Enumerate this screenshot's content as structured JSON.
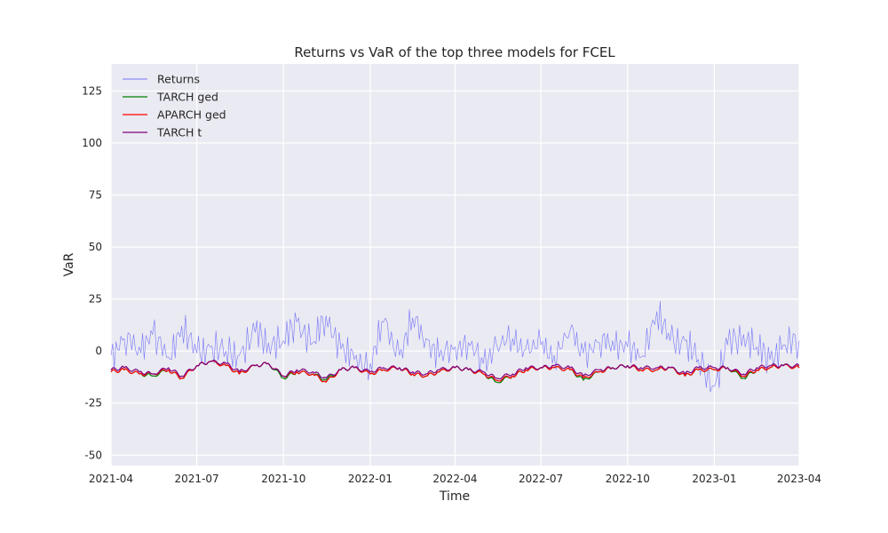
{
  "chart_data": {
    "type": "line",
    "title": "Returns vs VaR of the top three models for FCEL",
    "xlabel": "Time",
    "ylabel": "VaR",
    "xlim": [
      "2021-04-01",
      "2023-04-01"
    ],
    "ylim": [
      -55,
      138
    ],
    "x_ticks": [
      "2021-04",
      "2021-07",
      "2021-10",
      "2022-01",
      "2022-04",
      "2022-07",
      "2022-10",
      "2023-01",
      "2023-04"
    ],
    "y_ticks": [
      -50,
      -25,
      0,
      25,
      50,
      75,
      100,
      125
    ],
    "grid": true,
    "legend_position": "top-left",
    "x": [
      "2021-04-01",
      "2021-04-15",
      "2021-05-01",
      "2021-05-15",
      "2021-06-01",
      "2021-06-15",
      "2021-07-01",
      "2021-07-15",
      "2021-08-01",
      "2021-08-15",
      "2021-09-01",
      "2021-09-15",
      "2021-10-01",
      "2021-10-15",
      "2021-11-01",
      "2021-11-15",
      "2021-12-01",
      "2021-12-15",
      "2022-01-01",
      "2022-01-15",
      "2022-02-01",
      "2022-02-15",
      "2022-03-01",
      "2022-03-15",
      "2022-04-01",
      "2022-04-15",
      "2022-05-01",
      "2022-05-15",
      "2022-06-01",
      "2022-06-15",
      "2022-07-01",
      "2022-07-15",
      "2022-08-01",
      "2022-08-15",
      "2022-09-01",
      "2022-09-15",
      "2022-10-01",
      "2022-10-15",
      "2022-11-01",
      "2022-11-15",
      "2022-12-01",
      "2022-12-15",
      "2023-01-01",
      "2023-01-15",
      "2023-02-01",
      "2023-02-15",
      "2023-03-01",
      "2023-03-15",
      "2023-04-01"
    ],
    "series": [
      {
        "name": "Returns",
        "color": "#0000ff",
        "opacity": 0.5,
        "width": 0.6,
        "values": [
          -2,
          6,
          2,
          8,
          -3,
          12,
          -1,
          2,
          0,
          -2,
          9,
          4,
          5,
          14,
          4,
          17,
          1,
          -4,
          -6,
          14,
          -2,
          16,
          6,
          -3,
          2,
          4,
          -6,
          3,
          6,
          1,
          3,
          -2,
          10,
          -1,
          4,
          5,
          2,
          -3,
          19,
          5,
          5,
          -4,
          -17,
          3,
          8,
          2,
          -4,
          3,
          5
        ]
      },
      {
        "name": "TARCH ged",
        "color": "#008000",
        "width": 1.2,
        "values": [
          -10,
          -9,
          -11,
          -12,
          -9,
          -13,
          -7,
          -5,
          -7,
          -11,
          -7,
          -6,
          -13,
          -10,
          -11,
          -14,
          -9,
          -8,
          -11,
          -9,
          -8,
          -11,
          -12,
          -10,
          -8,
          -9,
          -11,
          -15,
          -12,
          -9,
          -8,
          -8,
          -9,
          -14,
          -10,
          -8,
          -7,
          -9,
          -9,
          -8,
          -12,
          -9,
          -9,
          -8,
          -13,
          -9,
          -8,
          -7,
          -8
        ]
      },
      {
        "name": "APARCH ged",
        "color": "#ff0000",
        "width": 1.2,
        "values": [
          -10,
          -9,
          -11,
          -11,
          -9,
          -13,
          -7,
          -5,
          -7,
          -11,
          -7,
          -6,
          -12,
          -10,
          -11,
          -15,
          -9,
          -8,
          -11,
          -9,
          -8,
          -11,
          -12,
          -10,
          -8,
          -9,
          -11,
          -14,
          -12,
          -9,
          -8,
          -8,
          -9,
          -13,
          -10,
          -8,
          -7,
          -9,
          -9,
          -8,
          -12,
          -9,
          -9,
          -8,
          -12,
          -9,
          -8,
          -7,
          -8
        ]
      },
      {
        "name": "TARCH t",
        "color": "#800080",
        "width": 1.2,
        "values": [
          -9,
          -8,
          -10,
          -11,
          -8,
          -12,
          -7,
          -5,
          -6,
          -10,
          -7,
          -6,
          -12,
          -9,
          -10,
          -13,
          -9,
          -8,
          -10,
          -8,
          -8,
          -10,
          -11,
          -9,
          -8,
          -9,
          -10,
          -13,
          -11,
          -8,
          -8,
          -7,
          -8,
          -12,
          -9,
          -8,
          -7,
          -8,
          -8,
          -8,
          -11,
          -8,
          -8,
          -8,
          -11,
          -8,
          -7,
          -7,
          -7
        ]
      }
    ]
  }
}
